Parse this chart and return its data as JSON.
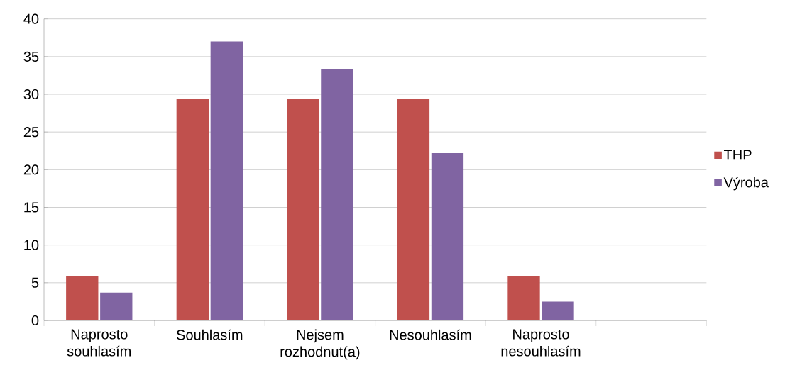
{
  "chart_data": {
    "type": "bar",
    "categories": [
      "Naprosto souhlasím",
      "Souhlasím",
      "Nejsem rozhodnut(a)",
      "Nesouhlasím",
      "Naprosto nesouhlasím",
      null
    ],
    "series": [
      {
        "name": "THP",
        "color": "#c0504d",
        "values": [
          5.9,
          29.4,
          29.4,
          29.4,
          5.9,
          null
        ]
      },
      {
        "name": "Výroba",
        "color": "#8064a2",
        "values": [
          3.7,
          37.0,
          33.3,
          22.2,
          2.5,
          null
        ]
      }
    ],
    "ylim": [
      0,
      40
    ],
    "yticks": [
      0,
      5,
      10,
      15,
      20,
      25,
      30,
      35,
      40
    ],
    "grid": "y",
    "legend": "right"
  }
}
